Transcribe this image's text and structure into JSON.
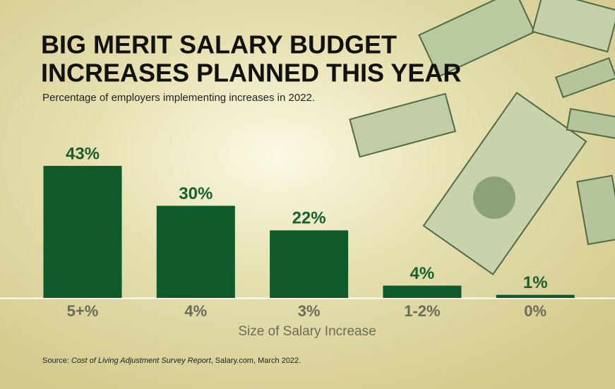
{
  "chart_data": {
    "type": "bar",
    "title": [
      "BIG MERIT SALARY BUDGET",
      "INCREASES PLANNED THIS YEAR"
    ],
    "subtitle": "Percentage of employers implementing increases in 2022.",
    "categories": [
      "5+%",
      "4%",
      "3%",
      "1-2%",
      "0%"
    ],
    "values": [
      43,
      30,
      22,
      4,
      1
    ],
    "value_labels": [
      "43%",
      "30%",
      "22%",
      "4%",
      "1%"
    ],
    "color": "#0f5a2b",
    "x_label": "Size of Salary Increase",
    "source": {
      "prefix": "Source: ",
      "title": "Cost of Living Adjustment Survey Report",
      "suffix": ", Salary.com, March 2022."
    }
  }
}
